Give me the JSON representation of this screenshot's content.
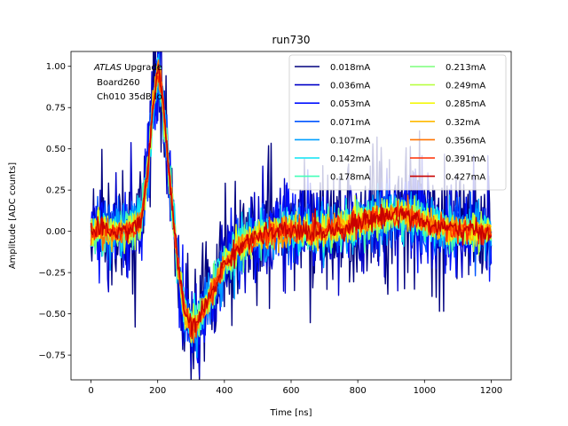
{
  "chart_data": {
    "type": "line",
    "title": "run730",
    "xlabel": "Time [ns]",
    "ylabel": "Amplitude [ADC counts]",
    "xlim": [
      -60,
      1260
    ],
    "ylim": [
      -0.9,
      1.09
    ],
    "xticks": [
      0,
      200,
      400,
      600,
      800,
      1000,
      1200
    ],
    "yticks": [
      -0.75,
      -0.5,
      -0.25,
      0.0,
      0.25,
      0.5,
      0.75,
      1.0
    ],
    "ytick_labels": [
      "−0.75",
      "−0.50",
      "−0.25",
      "0.00",
      "0.25",
      "0.50",
      "0.75",
      "1.00"
    ],
    "grid": false,
    "legend_location": "top-right",
    "legend_columns": 2,
    "annotation": {
      "italic": "ATLAS",
      "rest": " Upgrade",
      "line2": " Board260",
      "line3": " Ch010 35dB lo"
    },
    "shape": {
      "x": [
        0,
        100,
        150,
        170,
        185,
        200,
        210,
        230,
        260,
        280,
        300,
        320,
        350,
        400,
        450,
        500,
        550,
        600,
        650,
        700,
        750,
        800,
        850,
        900,
        930,
        960,
        1000,
        1050,
        1100,
        1150,
        1200
      ],
      "y": [
        0.0,
        0.0,
        0.05,
        0.35,
        0.75,
        0.97,
        0.9,
        0.45,
        -0.2,
        -0.48,
        -0.58,
        -0.55,
        -0.42,
        -0.2,
        -0.08,
        -0.03,
        -0.01,
        0.0,
        0.0,
        0.0,
        0.02,
        0.05,
        0.08,
        0.1,
        0.11,
        0.09,
        0.05,
        0.02,
        0.01,
        0.0,
        0.0
      ]
    },
    "series": [
      {
        "name": "0.018mA",
        "color": "#00007f",
        "noise": 0.2
      },
      {
        "name": "0.036mA",
        "color": "#0000c8",
        "noise": 0.14
      },
      {
        "name": "0.053mA",
        "color": "#0010ff",
        "noise": 0.11
      },
      {
        "name": "0.071mA",
        "color": "#0054ff",
        "noise": 0.09
      },
      {
        "name": "0.107mA",
        "color": "#00a0ff",
        "noise": 0.075
      },
      {
        "name": "0.142mA",
        "color": "#0ce4f4",
        "noise": 0.065
      },
      {
        "name": "0.178mA",
        "color": "#43ffb9",
        "noise": 0.058
      },
      {
        "name": "0.213mA",
        "color": "#7bff7b",
        "noise": 0.052
      },
      {
        "name": "0.249mA",
        "color": "#b9ff43",
        "noise": 0.048
      },
      {
        "name": "0.285mA",
        "color": "#f4f80c",
        "noise": 0.044
      },
      {
        "name": "0.32mA",
        "color": "#ffb900",
        "noise": 0.04
      },
      {
        "name": "0.356mA",
        "color": "#ff7300",
        "noise": 0.037
      },
      {
        "name": "0.391mA",
        "color": "#ff2d00",
        "noise": 0.034
      },
      {
        "name": "0.427mA",
        "color": "#c80000",
        "noise": 0.032
      }
    ]
  }
}
